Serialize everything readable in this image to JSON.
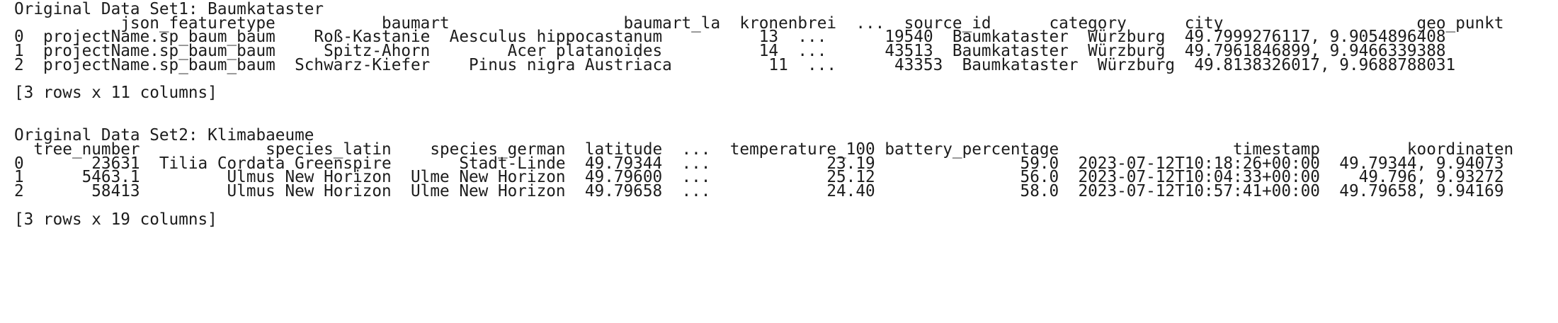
{
  "console": {
    "lines": [
      "Original Data Set1: Baumkataster",
      "           json_featuretype           baumart                  baumart_la  kronenbrei  ...  source_id      category      city                    geo_punkt",
      "0  projectName.sp_baum_baum    Roß-Kastanie  Aesculus hippocastanum          13  ...      19540  Baumkataster  Würzburg  49.7999276117, 9.9054896408",
      "1  projectName.sp_baum_baum     Spitz-Ahorn        Acer platanoides          14  ...      43513  Baumkataster  Würzburg  49.7961846899, 9.9466339388",
      "2  projectName.sp_baum_baum  Schwarz-Kiefer    Pinus nigra Austriaca          11  ...      43353  Baumkataster  Würzburg  49.8138326017, 9.9688788031",
      "",
      "[3 rows x 11 columns]",
      "",
      "",
      "Original Data Set2: Klimabaeume",
      "  tree_number             species_latin    species_german  latitude  ...  temperature_100 battery_percentage                  timestamp         koordinaten",
      "0       23631  Tilia Cordata Greenspire       Stadt-Linde  49.79344  ...            23.19               59.0  2023-07-12T10:18:26+00:00  49.79344, 9.94073",
      "1      5463.1         Ulmus New Horizon  Ulme New Horizon  49.79600  ...            25.12               56.0  2023-07-12T10:04:33+00:00    49.796, 9.93272",
      "2       58413         Ulmus New Horizon  Ulme New Horizon  49.79658  ...            24.40               58.0  2023-07-12T10:57:41+00:00  49.79658, 9.94169",
      "",
      "[3 rows x 19 columns]"
    ]
  }
}
